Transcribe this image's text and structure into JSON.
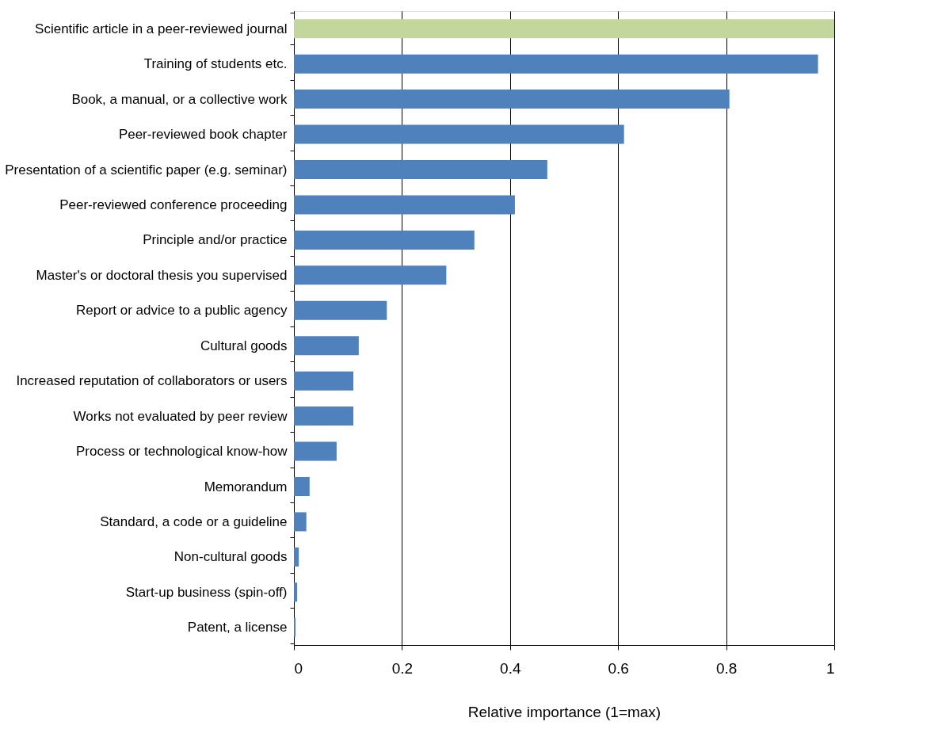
{
  "chart_data": {
    "type": "bar",
    "orientation": "horizontal",
    "xlabel": "Relative importance (1=max)",
    "categories": [
      "Scientific article in a peer-reviewed journal",
      "Training of students etc.",
      "Book, a manual, or a collective work",
      "Peer-reviewed book chapter",
      "Presentation of a scientific paper (e.g. seminar)",
      "Peer-reviewed conference proceeding",
      "Principle and/or practice",
      "Master's or doctoral thesis you supervised",
      "Report or advice to a public agency",
      "Cultural goods",
      "Increased reputation of collaborators or users",
      "Works not evaluated by peer review",
      "Process or technological know-how",
      "Memorandum",
      "Standard, a code or a guideline",
      "Non-cultural goods",
      "Start-up business (spin-off)",
      "Patent, a license"
    ],
    "values": [
      1.0,
      0.97,
      0.806,
      0.611,
      0.469,
      0.409,
      0.334,
      0.282,
      0.172,
      0.12,
      0.11,
      0.11,
      0.079,
      0.029,
      0.023,
      0.009,
      0.006,
      0.003
    ],
    "colors": [
      "#c3d69b",
      "#4f81bd",
      "#4f81bd",
      "#4f81bd",
      "#4f81bd",
      "#4f81bd",
      "#4f81bd",
      "#4f81bd",
      "#4f81bd",
      "#4f81bd",
      "#4f81bd",
      "#4f81bd",
      "#4f81bd",
      "#4f81bd",
      "#4f81bd",
      "#4f81bd",
      "#4f81bd",
      "#4f81bd"
    ],
    "xlim": [
      0,
      1
    ],
    "xticks": [
      0,
      0.2,
      0.4,
      0.6,
      0.8,
      1
    ],
    "grid": "x"
  }
}
